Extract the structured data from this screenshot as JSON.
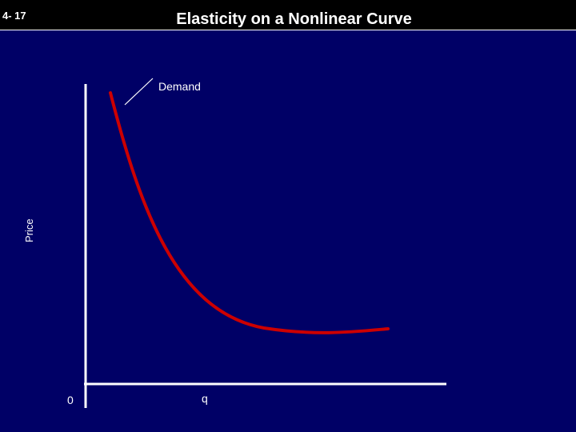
{
  "slide": {
    "number": "4- 17",
    "title": "Elasticity on a Nonlinear Curve"
  },
  "diagram": {
    "y_axis_label": "Price",
    "x_axis_label": "q",
    "origin_label": "0",
    "curve_label": "Demand"
  },
  "colors": {
    "background": "#000066",
    "header": "#000000",
    "axes": "#ffffff",
    "curve": "#cc0000"
  }
}
